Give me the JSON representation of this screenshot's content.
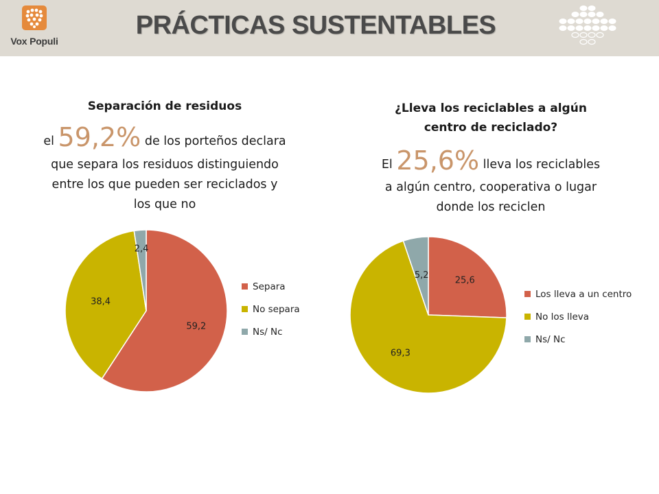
{
  "header": {
    "brand": "Vox Populi",
    "title": "PRÁCTICAS SUSTENTABLES",
    "colors": {
      "band": "#dedad2",
      "logo": "#e58a3c",
      "title": "#4a4a4a"
    },
    "icons": [
      "vox-populi-logo-icon",
      "dot-pattern-icon"
    ]
  },
  "left_panel": {
    "heading": "Separación de residuos",
    "prefix": "el",
    "highlight": "59,2%",
    "text_rest": "de los porteños declara",
    "text_lines": [
      "que separa los residuos distinguiendo",
      "entre los que pueden ser reciclados y",
      "los que no"
    ]
  },
  "right_panel": {
    "heading_lines": [
      "¿Lleva los reciclables a algún",
      "centro de reciclado?"
    ],
    "prefix": "El",
    "highlight": "25,6%",
    "text_rest": "lleva los reciclables",
    "text_lines": [
      "a algún centro, cooperativa o lugar",
      "donde los reciclen"
    ]
  },
  "chart_data": [
    {
      "type": "pie",
      "title": "",
      "labels": [
        "Separa",
        "No separa",
        "Ns/ Nc"
      ],
      "values": [
        59.2,
        38.4,
        2.4
      ],
      "value_labels": [
        "59,2",
        "38,4",
        "2,4"
      ],
      "colors": [
        "#d2614a",
        "#c9b400",
        "#8fa8aa"
      ],
      "legend": "right",
      "start": "12 o'clock, clockwise"
    },
    {
      "type": "pie",
      "title": "",
      "labels": [
        "Los lleva a un centro",
        "No los lleva",
        "Ns/ Nc"
      ],
      "values": [
        25.6,
        69.3,
        5.2
      ],
      "value_labels": [
        "25,6",
        "69,3",
        "5,2"
      ],
      "colors": [
        "#d2614a",
        "#c9b400",
        "#8fa8aa"
      ],
      "legend": "right",
      "start": "12 o'clock, clockwise"
    }
  ]
}
